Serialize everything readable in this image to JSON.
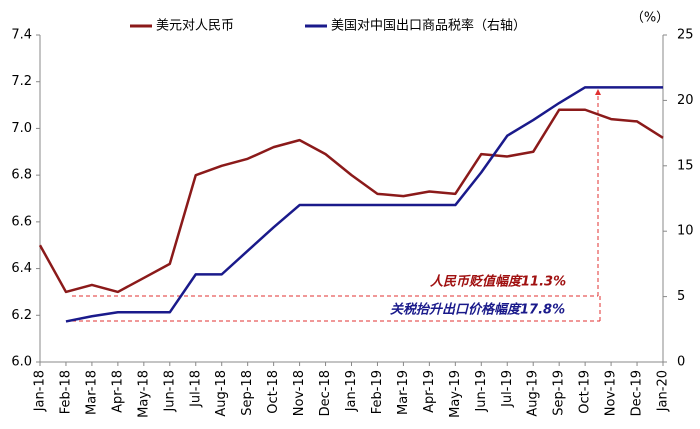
{
  "chart_data": {
    "type": "line",
    "legend_position": "top",
    "y2_label": "（%）",
    "categories": [
      "Jan-18",
      "Feb-18",
      "Mar-18",
      "Apr-18",
      "May-18",
      "Jun-18",
      "Jul-18",
      "Aug-18",
      "Sep-18",
      "Oct-18",
      "Nov-18",
      "Dec-18",
      "Jan-19",
      "Feb-19",
      "Mar-19",
      "Apr-19",
      "May-19",
      "Jun-19",
      "Jul-19",
      "Aug-19",
      "Sep-19",
      "Oct-19",
      "Nov-19",
      "Dec-19",
      "Jan-20"
    ],
    "series": [
      {
        "name": "美元对人民币",
        "color": "#8b1a1a",
        "values": [
          6.5,
          6.3,
          6.33,
          6.3,
          6.36,
          6.42,
          6.8,
          6.84,
          6.87,
          6.92,
          6.95,
          6.89,
          6.8,
          6.72,
          6.71,
          6.73,
          6.72,
          6.89,
          6.88,
          6.9,
          7.08,
          7.08,
          7.04,
          7.03,
          6.96
        ]
      },
      {
        "name": "美国对中国出口商品税率（右轴）",
        "color": "#1a1a8b",
        "axis": "y2",
        "values": [
          null,
          3.1,
          3.5,
          3.8,
          3.8,
          3.8,
          6.7,
          6.7,
          8.5,
          10.3,
          12,
          12,
          12,
          12,
          12,
          12,
          12,
          14.5,
          17.3,
          18.5,
          19.8,
          21,
          21,
          21,
          21
        ]
      }
    ],
    "ylim": [
      6.0,
      7.4
    ],
    "yticks": [
      {
        "value": 6,
        "label": "6.0"
      },
      6.2,
      6.4,
      6.6,
      6.8,
      {
        "value": 7,
        "label": "7.0"
      },
      7.2,
      7.4
    ],
    "y2lim": [
      0,
      25
    ],
    "y2ticks": [
      0,
      5,
      10,
      15,
      20,
      25
    ],
    "annotations": [
      "人民币贬值幅度11.3%",
      "关税抬升出口价格幅度17.8%"
    ],
    "grid": false
  }
}
